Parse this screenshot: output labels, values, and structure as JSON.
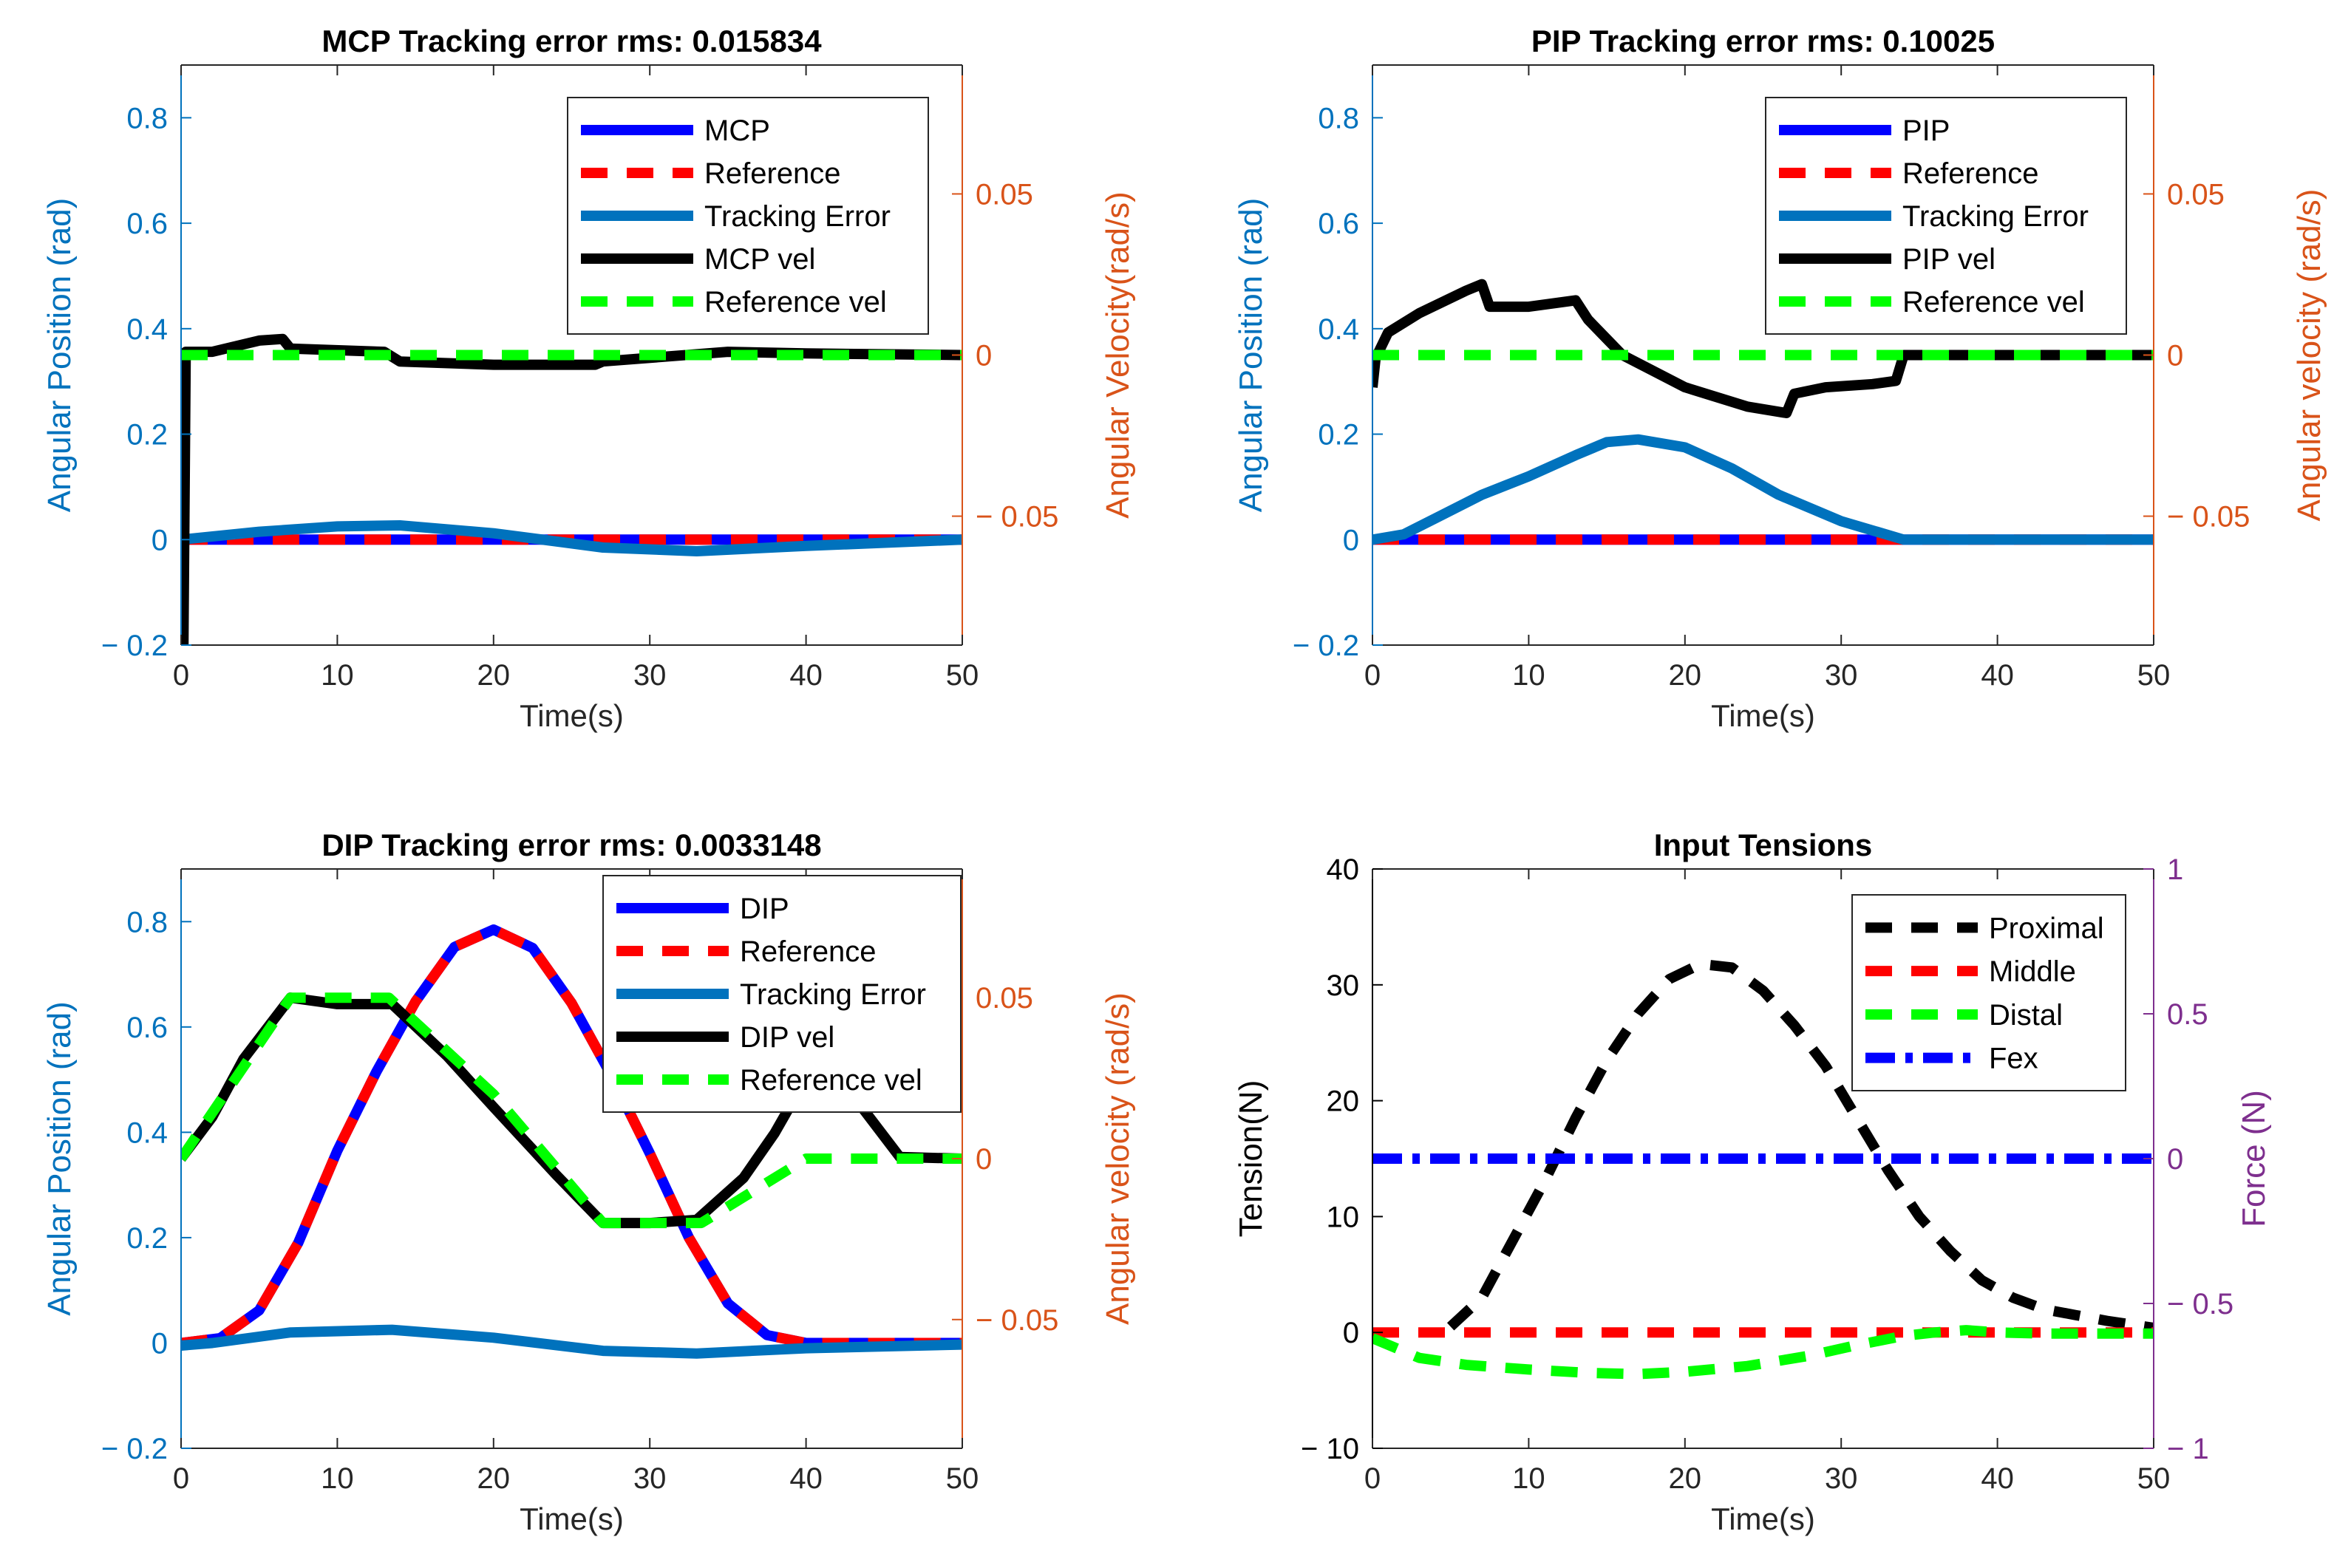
{
  "chart_data": [
    {
      "id": "mcp",
      "type": "line",
      "title": "MCP Tracking error rms: 0.015834",
      "xlabel": "Time(s)",
      "ylabel": "Angular Position (rad)",
      "ylabel_right": "Angular Velocity(rad/s)",
      "xlim": [
        0,
        50
      ],
      "ylim": [
        -0.2,
        0.9
      ],
      "ylim_right": [
        -0.09,
        0.09
      ],
      "xticks": [
        0,
        10,
        20,
        30,
        40,
        50
      ],
      "xtick_labels": [
        "0",
        "10",
        "20",
        "30",
        "40",
        "50"
      ],
      "yticks": [
        -0.2,
        0,
        0.2,
        0.4,
        0.6,
        0.8
      ],
      "ytick_labels": [
        "− 0.2",
        "0",
        "0.2",
        "0.4",
        "0.6",
        "0.8"
      ],
      "yticks_right": [
        -0.05,
        0,
        0.05
      ],
      "ytick_labels_right": [
        "− 0.05",
        "0",
        "0.05"
      ],
      "left_axis_color": "#0072BD",
      "right_axis_color": "#D95319",
      "legend_position": "top-right",
      "series": [
        {
          "name": "MCP",
          "axis": "left",
          "color": "#0000FF",
          "style": "solid",
          "x": [
            0,
            10,
            20,
            30,
            40,
            50
          ],
          "y": [
            0,
            0,
            0,
            0,
            0,
            0
          ]
        },
        {
          "name": "Reference",
          "axis": "left",
          "color": "#FF0000",
          "style": "dashed",
          "x": [
            0,
            10,
            20,
            30,
            40,
            50
          ],
          "y": [
            0,
            0,
            0,
            0,
            0,
            0
          ]
        },
        {
          "name": "Tracking Error",
          "axis": "left",
          "color": "#0072BD",
          "style": "solid",
          "x": [
            0,
            5,
            10,
            14,
            20,
            27,
            33,
            40,
            50
          ],
          "y": [
            0,
            0.015,
            0.025,
            0.027,
            0.012,
            -0.015,
            -0.022,
            -0.012,
            0
          ]
        },
        {
          "name": "MCP vel",
          "axis": "right",
          "color": "#000000",
          "style": "solid",
          "x": [
            0,
            0.15,
            0.3,
            0.4,
            2,
            5,
            6.5,
            7,
            13,
            14,
            20,
            26.5,
            27,
            35,
            40,
            50
          ],
          "y": [
            -0.09,
            -0.09,
            0.001,
            0.001,
            0.001,
            0.0045,
            0.005,
            0.002,
            0.001,
            -0.002,
            -0.003,
            -0.003,
            -0.002,
            0.001,
            0.0005,
            0
          ]
        },
        {
          "name": "Reference vel",
          "axis": "right",
          "color": "#00FF00",
          "style": "dashed",
          "x": [
            0,
            50
          ],
          "y": [
            0,
            0
          ]
        }
      ]
    },
    {
      "id": "pip",
      "type": "line",
      "title": "PIP Tracking error rms: 0.10025",
      "xlabel": "Time(s)",
      "ylabel": "Angular Position (rad)",
      "ylabel_right": "Angular velocity (rad/s)",
      "xlim": [
        0,
        50
      ],
      "ylim": [
        -0.2,
        0.9
      ],
      "ylim_right": [
        -0.09,
        0.09
      ],
      "xticks": [
        0,
        10,
        20,
        30,
        40,
        50
      ],
      "xtick_labels": [
        "0",
        "10",
        "20",
        "30",
        "40",
        "50"
      ],
      "yticks": [
        -0.2,
        0,
        0.2,
        0.4,
        0.6,
        0.8
      ],
      "ytick_labels": [
        "− 0.2",
        "0",
        "0.2",
        "0.4",
        "0.6",
        "0.8"
      ],
      "yticks_right": [
        -0.05,
        0,
        0.05
      ],
      "ytick_labels_right": [
        "− 0.05",
        "0",
        "0.05"
      ],
      "left_axis_color": "#0072BD",
      "right_axis_color": "#D95319",
      "legend_position": "top-right",
      "series": [
        {
          "name": "PIP",
          "axis": "left",
          "color": "#0000FF",
          "style": "solid",
          "x": [
            0,
            10,
            20,
            30,
            40,
            50
          ],
          "y": [
            0,
            0,
            0,
            0,
            0,
            0
          ]
        },
        {
          "name": "Reference",
          "axis": "left",
          "color": "#FF0000",
          "style": "dashed",
          "x": [
            0,
            10,
            20,
            30,
            40,
            50
          ],
          "y": [
            0,
            0,
            0,
            0,
            0,
            0
          ]
        },
        {
          "name": "Tracking Error",
          "axis": "left",
          "color": "#0072BD",
          "style": "solid",
          "x": [
            0,
            2,
            4,
            7,
            10,
            13,
            15,
            17,
            20,
            23,
            26,
            30,
            34,
            40,
            50
          ],
          "y": [
            0,
            0.01,
            0.04,
            0.085,
            0.12,
            0.16,
            0.185,
            0.19,
            0.175,
            0.135,
            0.085,
            0.035,
            0,
            0,
            0
          ]
        },
        {
          "name": "PIP vel",
          "axis": "right",
          "color": "#000000",
          "style": "solid",
          "x": [
            0,
            0.2,
            1,
            3,
            6,
            7,
            7.5,
            10,
            13,
            13.8,
            16,
            20,
            24,
            26.5,
            27,
            29,
            32,
            33.5,
            34,
            35,
            40,
            50
          ],
          "y": [
            -0.01,
            -0.001,
            0.007,
            0.013,
            0.02,
            0.022,
            0.015,
            0.015,
            0.017,
            0.011,
            0,
            -0.01,
            -0.016,
            -0.018,
            -0.012,
            -0.01,
            -0.009,
            -0.008,
            0,
            0,
            0,
            0
          ]
        },
        {
          "name": "Reference vel",
          "axis": "right",
          "color": "#00FF00",
          "style": "dashed",
          "x": [
            0,
            50
          ],
          "y": [
            0,
            0
          ]
        }
      ]
    },
    {
      "id": "dip",
      "type": "line",
      "title": "DIP Tracking error rms: 0.0033148",
      "xlabel": "Time(s)",
      "ylabel": "Angular Position (rad)",
      "ylabel_right": "Angular velocity (rad/s)",
      "xlim": [
        0,
        50
      ],
      "ylim": [
        -0.2,
        0.9
      ],
      "ylim_right": [
        -0.09,
        0.09
      ],
      "xticks": [
        0,
        10,
        20,
        30,
        40,
        50
      ],
      "xtick_labels": [
        "0",
        "10",
        "20",
        "30",
        "40",
        "50"
      ],
      "yticks": [
        -0.2,
        0,
        0.2,
        0.4,
        0.6,
        0.8
      ],
      "ytick_labels": [
        "− 0.2",
        "0",
        "0.2",
        "0.4",
        "0.6",
        "0.8"
      ],
      "yticks_right": [
        -0.05,
        0,
        0.05
      ],
      "ytick_labels_right": [
        "− 0.05",
        "0",
        "0.05"
      ],
      "left_axis_color": "#0072BD",
      "right_axis_color": "#D95319",
      "legend_position": "top-right",
      "series": [
        {
          "name": "DIP",
          "axis": "left",
          "color": "#0000FF",
          "style": "solid",
          "x": [
            0,
            2.5,
            5,
            7.5,
            10,
            12.5,
            15,
            17.5,
            20,
            22.5,
            25,
            27.5,
            30,
            32.5,
            35,
            37.5,
            40,
            42.5,
            45,
            47.5,
            50
          ],
          "y": [
            0,
            0.009,
            0.062,
            0.19,
            0.365,
            0.515,
            0.648,
            0.752,
            0.785,
            0.75,
            0.645,
            0.51,
            0.36,
            0.2,
            0.075,
            0.015,
            0,
            0,
            0,
            0,
            0
          ]
        },
        {
          "name": "Reference",
          "axis": "left",
          "color": "#FF0000",
          "style": "dashed",
          "x": [
            0,
            2.5,
            5,
            7.5,
            10,
            12.5,
            15,
            17.5,
            20,
            22.5,
            25,
            27.5,
            30,
            32.5,
            35,
            37.5,
            40,
            42.5,
            45,
            47.5,
            50
          ],
          "y": [
            0,
            0.009,
            0.062,
            0.19,
            0.365,
            0.515,
            0.648,
            0.752,
            0.785,
            0.75,
            0.645,
            0.51,
            0.36,
            0.2,
            0.075,
            0.015,
            0,
            0,
            0,
            0,
            0
          ]
        },
        {
          "name": "Tracking Error",
          "axis": "left",
          "color": "#0072BD",
          "style": "solid",
          "x": [
            0,
            2,
            7,
            13.5,
            20,
            27,
            33,
            40,
            50
          ],
          "y": [
            -0.005,
            0,
            0.02,
            0.025,
            0.01,
            -0.015,
            -0.02,
            -0.01,
            -0.003
          ]
        },
        {
          "name": "DIP vel",
          "axis": "right",
          "color": "#000000",
          "style": "solid",
          "x": [
            0,
            2,
            4,
            7,
            10,
            13.5,
            17,
            20,
            24,
            27,
            30,
            33,
            36,
            38,
            40,
            42,
            46,
            50
          ],
          "y": [
            0,
            0.013,
            0.031,
            0.05,
            0.048,
            0.048,
            0.032,
            0.016,
            -0.005,
            -0.02,
            -0.02,
            -0.019,
            -0.006,
            0.008,
            0.025,
            0.026,
            0.0005,
            0
          ]
        },
        {
          "name": "Reference vel",
          "axis": "right",
          "color": "#00FF00",
          "style": "dashed",
          "x": [
            0,
            7,
            13.3,
            20,
            27,
            33.3,
            40,
            50
          ],
          "y": [
            0,
            0.05,
            0.05,
            0.02,
            -0.02,
            -0.02,
            0,
            0
          ]
        }
      ]
    },
    {
      "id": "tensions",
      "type": "line",
      "title": "Input Tensions",
      "xlabel": "Time(s)",
      "ylabel": "Tension(N)",
      "ylabel_right": "Force (N)",
      "xlim": [
        0,
        50
      ],
      "ylim": [
        -10,
        40
      ],
      "ylim_right": [
        -1,
        1
      ],
      "xticks": [
        0,
        10,
        20,
        30,
        40,
        50
      ],
      "xtick_labels": [
        "0",
        "10",
        "20",
        "30",
        "40",
        "50"
      ],
      "yticks": [
        -10,
        0,
        10,
        20,
        30,
        40
      ],
      "ytick_labels": [
        "− 10",
        "0",
        "10",
        "20",
        "30",
        "40"
      ],
      "yticks_right": [
        -1,
        -0.5,
        0,
        0.5,
        1
      ],
      "ytick_labels_right": [
        "− 1",
        "− 0.5",
        "0",
        "0.5",
        "1"
      ],
      "left_axis_color": "#000000",
      "right_axis_color": "#7E2F8E",
      "legend_position": "top-right",
      "series": [
        {
          "name": "Proximal",
          "axis": "left",
          "color": "#000000",
          "style": "dashed",
          "x": [
            5,
            7,
            9,
            11,
            13,
            15,
            17,
            19,
            21,
            23,
            25,
            27,
            29,
            31,
            33,
            35,
            37,
            39,
            41,
            43,
            45,
            47,
            49,
            50
          ],
          "y": [
            0.5,
            3,
            8,
            13,
            18.5,
            23.5,
            27.5,
            30.5,
            31.8,
            31.5,
            29.5,
            26.5,
            23,
            18.5,
            14,
            10,
            7,
            4.5,
            3,
            2,
            1.5,
            1,
            0.6,
            0.4
          ]
        },
        {
          "name": "Middle",
          "axis": "left",
          "color": "#FF0000",
          "style": "dashed",
          "x": [
            0,
            50
          ],
          "y": [
            0,
            0
          ]
        },
        {
          "name": "Distal",
          "axis": "left",
          "color": "#00FF00",
          "style": "dashed",
          "x": [
            0,
            3,
            6,
            10,
            14,
            17,
            20,
            24,
            28,
            31,
            34,
            36,
            38,
            40,
            43,
            47,
            50
          ],
          "y": [
            -0.5,
            -2.2,
            -2.8,
            -3.2,
            -3.5,
            -3.6,
            -3.4,
            -2.9,
            -2,
            -1.1,
            -0.3,
            0,
            0.2,
            0,
            -0.1,
            -0.1,
            -0.1
          ]
        },
        {
          "name": "Fex",
          "axis": "right",
          "color": "#0000FF",
          "style": "dashdot",
          "x": [
            0,
            50
          ],
          "y": [
            0,
            0
          ]
        }
      ]
    }
  ]
}
